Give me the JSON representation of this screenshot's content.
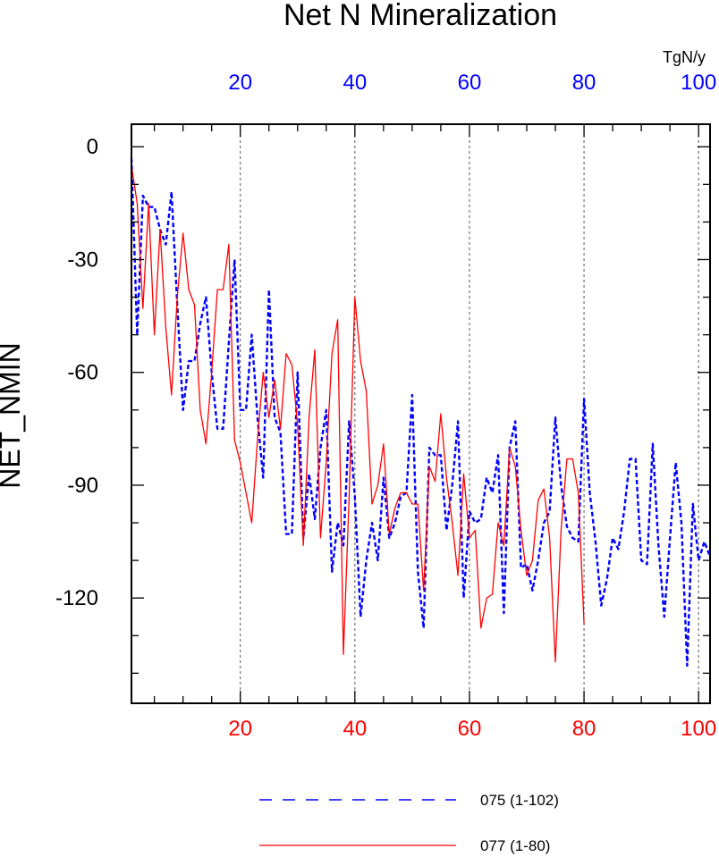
{
  "chart_data": {
    "type": "line",
    "title": "Net N Mineralization",
    "ylabel": "NET_NMIN",
    "units": "TgN/y",
    "xlim": [
      1,
      102
    ],
    "ylim": [
      -148,
      6
    ],
    "yticks": [
      0,
      -30,
      -60,
      -90,
      -120
    ],
    "top_xticks": [
      20,
      40,
      60,
      80,
      100
    ],
    "bottom_xticks": [
      20,
      40,
      60,
      80,
      100
    ],
    "grid": "dashed vertical lines at x = 20, 40, 60, 80, 100",
    "legend_position": "bottom",
    "series": [
      {
        "name": "075 (1-102)",
        "color": "#0000ff",
        "style": "dashed",
        "x_axis": "top",
        "x_start": 1,
        "values": [
          -3,
          -50,
          -13,
          -16,
          -16,
          -22,
          -26,
          -12,
          -42,
          -70,
          -57,
          -57,
          -47,
          -40,
          -60,
          -75,
          -75,
          -52,
          -30,
          -70,
          -70,
          -50,
          -72,
          -88,
          -38,
          -72,
          -76,
          -103,
          -103,
          -60,
          -104,
          -87,
          -99,
          -80,
          -70,
          -113,
          -100,
          -106,
          -73,
          -93,
          -125,
          -110,
          -100,
          -110,
          -88,
          -104,
          -100,
          -93,
          -92,
          -66,
          -113,
          -128,
          -80,
          -82,
          -82,
          -102,
          -90,
          -73,
          -120,
          -97,
          -100,
          -99,
          -88,
          -92,
          -82,
          -124,
          -80,
          -73,
          -112,
          -111,
          -118,
          -110,
          -100,
          -97,
          -72,
          -90,
          -101,
          -104,
          -105,
          -67,
          -92,
          -105,
          -122,
          -115,
          -104,
          -107,
          -97,
          -83,
          -83,
          -110,
          -111,
          -79,
          -106,
          -125,
          -104,
          -84,
          -100,
          -138,
          -95,
          -110,
          -105,
          -109
        ]
      },
      {
        "name": "077 (1-80)",
        "color": "#ff0000",
        "style": "solid",
        "x_axis": "bottom",
        "x_start": 1,
        "values": [
          -5,
          -15,
          -43,
          -15,
          -50,
          -22,
          -48,
          -66,
          -40,
          -23,
          -38,
          -42,
          -70,
          -79,
          -60,
          -38,
          -38,
          -26,
          -78,
          -84,
          -92,
          -100,
          -78,
          -60,
          -72,
          -62,
          -75,
          -55,
          -58,
          -74,
          -106,
          -72,
          -54,
          -104,
          -84,
          -55,
          -46,
          -135,
          -93,
          -40,
          -57,
          -65,
          -95,
          -90,
          -79,
          -103,
          -96,
          -92,
          -92,
          -95,
          -95,
          -118,
          -85,
          -89,
          -71,
          -88,
          -100,
          -114,
          -87,
          -104,
          -102,
          -128,
          -120,
          -119,
          -100,
          -106,
          -80,
          -85,
          -102,
          -114,
          -110,
          -94,
          -91,
          -104,
          -137,
          -102,
          -83,
          -83,
          -92,
          -127
        ]
      }
    ]
  }
}
